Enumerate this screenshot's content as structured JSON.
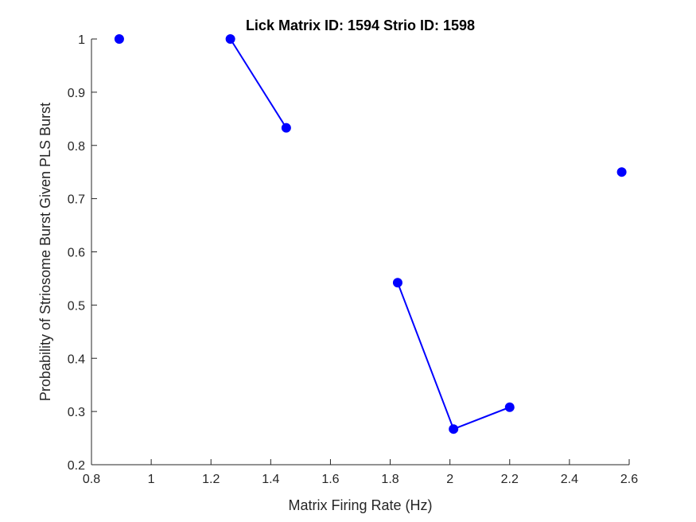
{
  "chart_data": {
    "type": "scatter",
    "title": "Lick Matrix ID: 1594 Strio ID: 1598",
    "xlabel": "Matrix Firing Rate (Hz)",
    "ylabel": "Probability of Striosome Burst Given PLS Burst",
    "xlim": [
      0.8,
      2.6
    ],
    "ylim": [
      0.2,
      1.0
    ],
    "xticks": [
      "0.8",
      "1",
      "1.2",
      "1.4",
      "1.6",
      "1.8",
      "2",
      "2.2",
      "2.4",
      "2.6"
    ],
    "yticks": [
      "0.2",
      "0.3",
      "0.4",
      "0.5",
      "0.6",
      "0.7",
      "0.8",
      "0.9",
      "1"
    ],
    "grid": false,
    "color": "#0000ff",
    "segments": [
      [
        {
          "x": 0.893,
          "y": 1.0
        }
      ],
      [
        {
          "x": 1.265,
          "y": 1.0
        },
        {
          "x": 1.452,
          "y": 0.833
        }
      ],
      [
        {
          "x": 1.825,
          "y": 0.542
        },
        {
          "x": 2.012,
          "y": 0.267
        },
        {
          "x": 2.2,
          "y": 0.308
        }
      ],
      [
        {
          "x": 2.575,
          "y": 0.75
        }
      ]
    ]
  }
}
